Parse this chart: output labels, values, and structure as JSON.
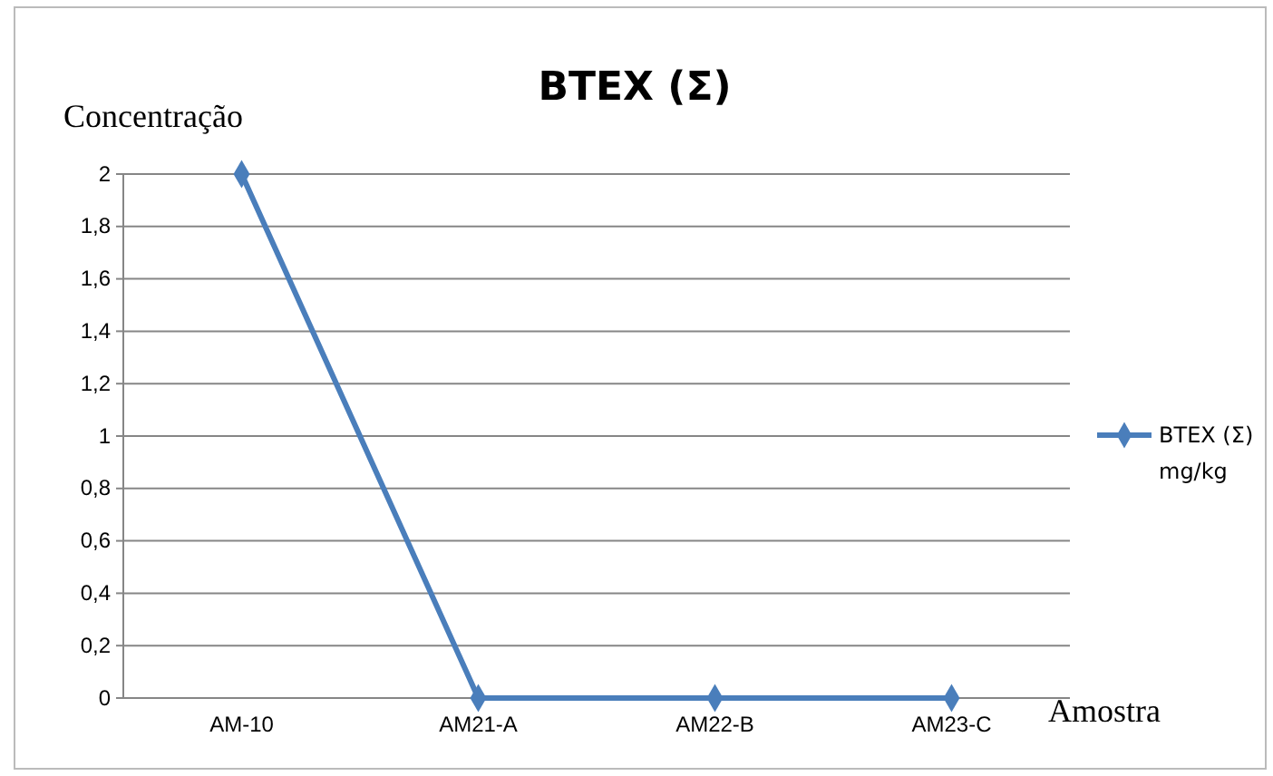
{
  "chart_data": {
    "type": "line",
    "title": "BTEX (Σ)",
    "xlabel": "Amostra",
    "ylabel": "Concentração",
    "categories": [
      "AM-10",
      "AM21-A",
      "AM22-B",
      "AM23-C"
    ],
    "series": [
      {
        "name": "BTEX (Σ) mg/kg",
        "color": "#4a7ebb",
        "values": [
          2,
          0,
          0,
          0
        ]
      }
    ],
    "ylim": [
      0,
      2
    ],
    "yticks": [
      0,
      {
        "value": 0.2,
        "label": "0,2"
      },
      {
        "value": 0.4,
        "label": "0,4"
      },
      {
        "value": 0.6,
        "label": "0,6"
      },
      {
        "value": 0.8,
        "label": "0,8"
      },
      1,
      {
        "value": 1.2,
        "label": "1,2"
      },
      {
        "value": 1.4,
        "label": "1,4"
      },
      {
        "value": 1.6,
        "label": "1,6"
      },
      {
        "value": 1.8,
        "label": "1,8"
      },
      2
    ],
    "grid": "y",
    "legend": "right",
    "marker": "diamond",
    "line_style": "solid"
  }
}
